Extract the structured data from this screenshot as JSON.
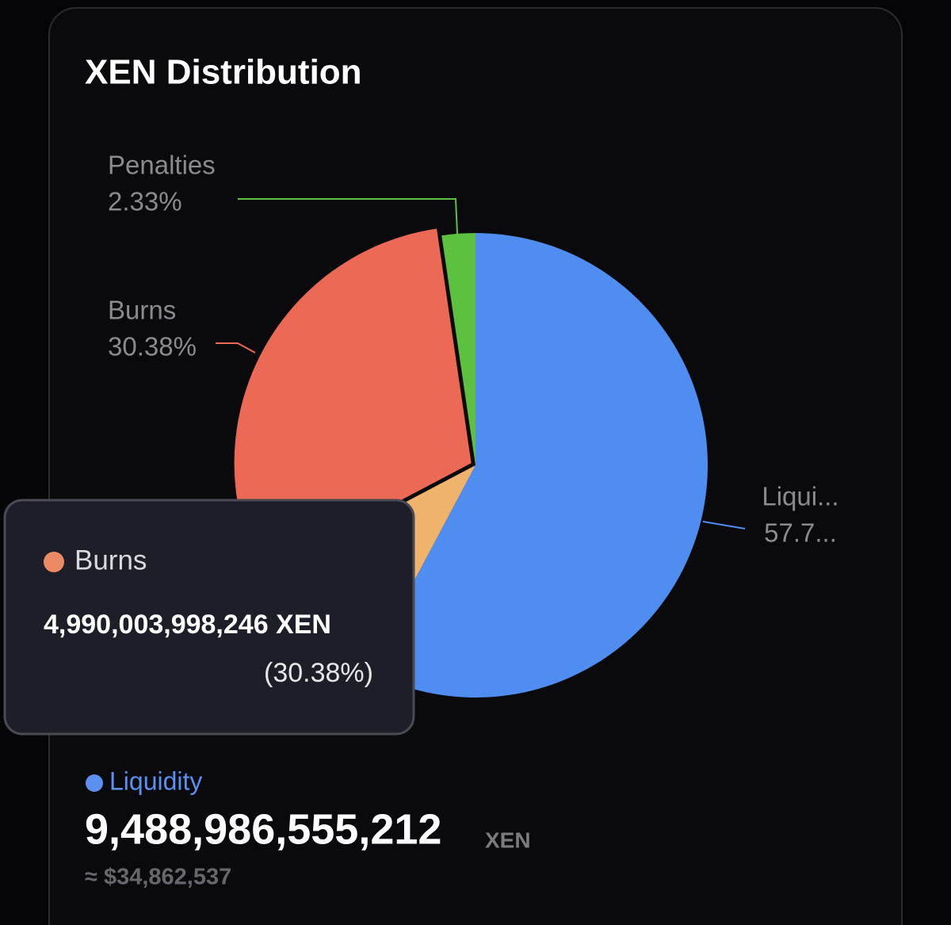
{
  "card": {
    "title": "XEN Distribution"
  },
  "chart_data": {
    "type": "pie",
    "categories": [
      "Liqui...",
      null,
      "Burns",
      "Penalties"
    ],
    "values": [
      57.77,
      9.52,
      30.38,
      2.33
    ],
    "value_labels": [
      "57.7...",
      null,
      "30.38%",
      "2.33%"
    ],
    "colors": [
      "#4f8ef0",
      "#f0b36b",
      "#ec6a55",
      "#5cc13f"
    ]
  },
  "tooltip": {
    "name": "Burns",
    "amount": "4,990,003,998,246 XEN",
    "percent": "(30.38%)"
  },
  "summary": {
    "name": "Liquidity",
    "amount": "9,488,986,555,212",
    "unit": "XEN",
    "usd": "≈ $34,862,537"
  }
}
